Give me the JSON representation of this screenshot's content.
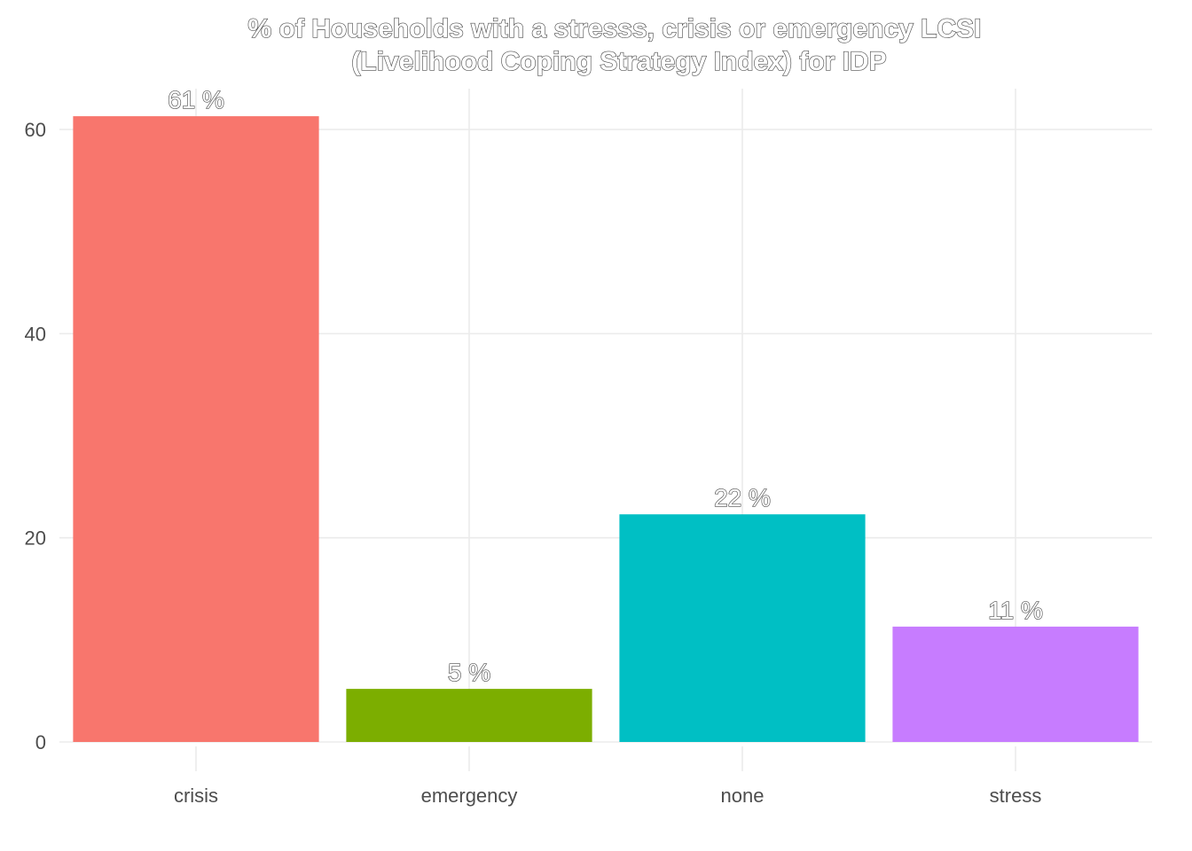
{
  "chart_data": {
    "type": "bar",
    "title_lines": [
      "% of Households with a stresss, crisis or emergency LCSI",
      "(Livelihood Coping Strategy Index) for IDP"
    ],
    "categories": [
      "crisis",
      "emergency",
      "none",
      "stress"
    ],
    "values": [
      61.3,
      5.2,
      22.3,
      11.3
    ],
    "labels": [
      "61 %",
      "5 %",
      "22 %",
      "11 %"
    ],
    "colors": [
      "#F8766D",
      "#7CAE00",
      "#00BFC4",
      "#C77CFF"
    ],
    "xlabel": "",
    "ylabel": "",
    "ylim": [
      0,
      64
    ],
    "yticks": [
      0,
      20,
      40,
      60
    ],
    "grid": true,
    "legend": "none"
  }
}
